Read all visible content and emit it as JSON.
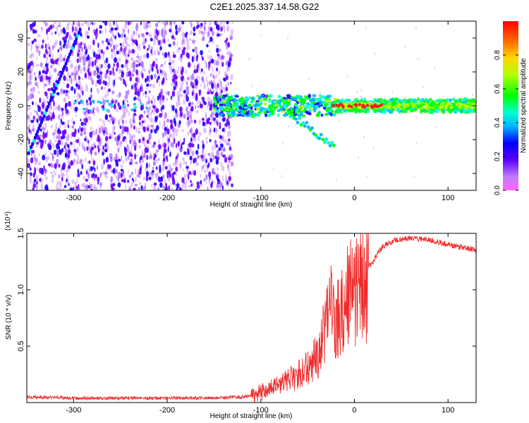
{
  "title": "C2E1.2025.337.14.58.G22",
  "chart_data": [
    {
      "type": "heatmap",
      "xlabel": "Height of straight line (km)",
      "ylabel": "Frequency (Hz)",
      "xlim": [
        -350,
        130
      ],
      "ylim": [
        -50,
        50
      ],
      "xticks": [
        -300,
        -200,
        -100,
        0,
        100
      ],
      "yticks": [
        -40,
        -20,
        0,
        20,
        40
      ],
      "colorbar": {
        "label": "Normalized spectral amplitude",
        "range": [
          0.0,
          1.0
        ],
        "ticks": [
          0.0,
          0.2,
          0.4,
          0.6,
          0.8
        ]
      },
      "features": [
        {
          "name": "noise region",
          "x_range": [
            -350,
            -130
          ],
          "y_range": [
            -50,
            50
          ]
        },
        {
          "name": "diagonal streak",
          "from": [
            -348,
            -28
          ],
          "to": [
            -293,
            45
          ]
        },
        {
          "name": "signal band",
          "x_range": [
            -150,
            130
          ],
          "center": 0,
          "half_width": 4
        },
        {
          "name": "descending branch",
          "from": [
            -80,
            0
          ],
          "to": [
            -22,
            -24
          ]
        }
      ]
    },
    {
      "type": "line",
      "xlabel": "Height of straight line (km)",
      "ylabel": "SNR (10 * v/v)",
      "multiplier": "(x10⁴)",
      "xlim": [
        -350,
        130
      ],
      "ylim": [
        0,
        1.5
      ],
      "xticks": [
        -300,
        -200,
        -100,
        0,
        100
      ],
      "yticks": [
        0.5,
        1.0,
        1.5
      ],
      "series": [
        {
          "name": "SNR",
          "color": "#ef2b2b",
          "x": [
            -350,
            -300,
            -250,
            -200,
            -150,
            -120,
            -110,
            -100,
            -90,
            -80,
            -70,
            -60,
            -50,
            -40,
            -35,
            -30,
            -25,
            -20,
            -15,
            -10,
            -5,
            0,
            5,
            10,
            15,
            20,
            25,
            30,
            40,
            50,
            60,
            70,
            80,
            90,
            100,
            110,
            120,
            130
          ],
          "values": [
            0.05,
            0.04,
            0.04,
            0.04,
            0.04,
            0.05,
            0.06,
            0.09,
            0.12,
            0.16,
            0.2,
            0.24,
            0.3,
            0.4,
            0.5,
            0.7,
            0.85,
            0.65,
            0.85,
            0.9,
            0.95,
            1.0,
            1.05,
            1.1,
            1.2,
            1.25,
            1.33,
            1.38,
            1.43,
            1.45,
            1.46,
            1.45,
            1.44,
            1.42,
            1.4,
            1.38,
            1.37,
            1.35
          ]
        }
      ]
    }
  ]
}
